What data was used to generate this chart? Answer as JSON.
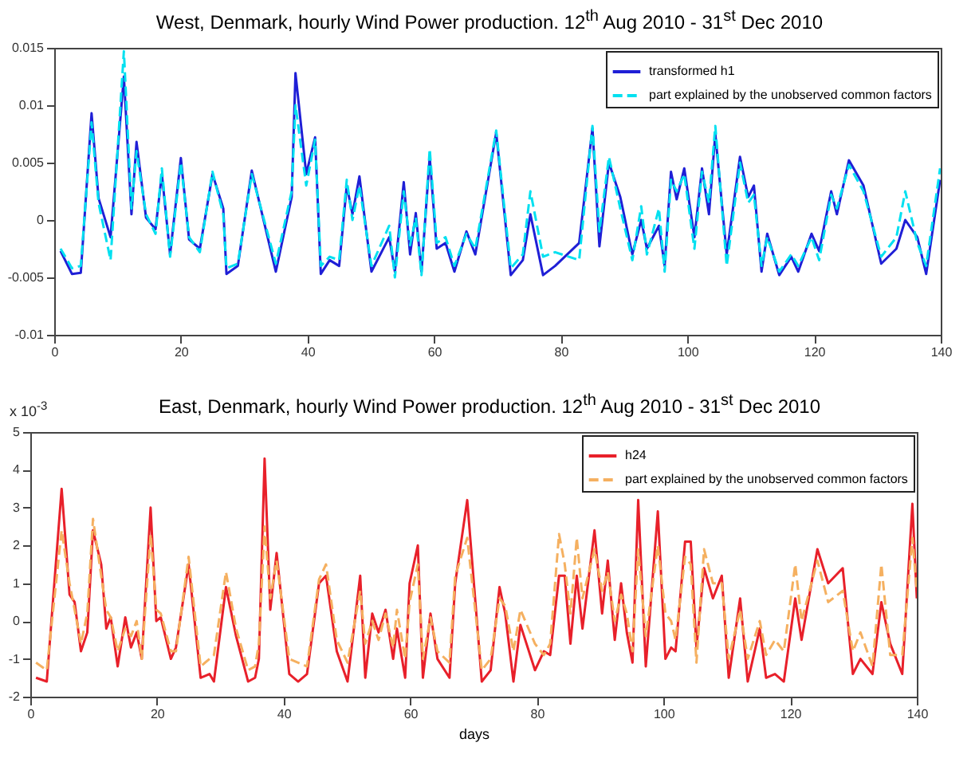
{
  "chart_data": [
    {
      "type": "line",
      "title": "West, Denmark, hourly Wind Power production. 12$^{th}$ Aug 2010 - 31$^{st}$ Dec 2010",
      "x": [
        1,
        2.8,
        4.2,
        5.9,
        7,
        8.9,
        11,
        12.2,
        13,
        14.5,
        16,
        17,
        18.3,
        20,
        21.3,
        23,
        25,
        26.7,
        27.2,
        29,
        31.2,
        35,
        37.5,
        38.1,
        39.8,
        41.2,
        42.1,
        43.5,
        45,
        46.2,
        47.1,
        48.2,
        50.1,
        52.9,
        53.8,
        55.2,
        56.2,
        57.1,
        58,
        59.3,
        60.4,
        61.8,
        63.2,
        65.1,
        66.5,
        69.8,
        72.1,
        74,
        75.2,
        77.2,
        79.1,
        82.9,
        85,
        86.1,
        87.6,
        89.4,
        91.3,
        92.7,
        93.6,
        95.5,
        96.4,
        97.4,
        98.3,
        99.5,
        101.1,
        102.3,
        103.4,
        104.4,
        106.2,
        108.3,
        109.6,
        110.5,
        111.7,
        112.6,
        114.5,
        116.4,
        117.5,
        119.6,
        120.8,
        122.7,
        123.6,
        125.5,
        127.8,
        130.6,
        133,
        134.4,
        136.3,
        137.7,
        139.9
      ],
      "series": [
        {
          "name": "transformed h1",
          "color": "#1f1fd6",
          "line_style": "solid",
          "values": [
            -0.0027,
            -0.0047,
            -0.0046,
            0.0093,
            0.0019,
            -0.0015,
            0.0125,
            0.0005,
            0.0068,
            0.0002,
            -0.0008,
            0.004,
            -0.003,
            0.0054,
            -0.0017,
            -0.0025,
            0.004,
            0.001,
            -0.0047,
            -0.004,
            0.0043,
            -0.0045,
            0.002,
            0.0128,
            0.004,
            0.0072,
            -0.0047,
            -0.0035,
            -0.004,
            0.003,
            0.0005,
            0.0038,
            -0.0045,
            -0.0015,
            -0.0045,
            0.0033,
            -0.003,
            0.0006,
            -0.0045,
            0.0055,
            -0.0025,
            -0.002,
            -0.0045,
            -0.001,
            -0.003,
            0.0076,
            -0.0048,
            -0.0035,
            0.0005,
            -0.0048,
            -0.004,
            -0.002,
            0.008,
            -0.0023,
            0.005,
            0.002,
            -0.003,
            0,
            -0.0025,
            -0.0005,
            -0.004,
            0.0042,
            0.0018,
            0.0045,
            -0.0015,
            0.0045,
            0.0005,
            0.0075,
            -0.003,
            0.0055,
            0.002,
            0.003,
            -0.0045,
            -0.0012,
            -0.0048,
            -0.0032,
            -0.0045,
            -0.0012,
            -0.0027,
            0.0025,
            0.0005,
            0.0052,
            0.003,
            -0.0038,
            -0.0025,
            0,
            -0.0015,
            -0.0047,
            0.0035
          ]
        },
        {
          "name": "part explained by the unobserved common factors",
          "color": "#00e0f0",
          "line_style": "dashed",
          "values": [
            -0.0025,
            -0.0042,
            -0.004,
            0.0085,
            0.0015,
            -0.0035,
            0.0147,
            0.001,
            0.006,
            0.0005,
            -0.0012,
            0.0045,
            -0.0032,
            0.005,
            -0.0015,
            -0.0028,
            0.0042,
            0.0005,
            -0.0042,
            -0.0038,
            0.004,
            -0.0038,
            0.0025,
            0.01,
            0.003,
            0.007,
            -0.004,
            -0.0032,
            -0.0035,
            0.0035,
            0,
            0.003,
            -0.004,
            -0.0005,
            -0.005,
            0.0025,
            -0.0022,
            0.0002,
            -0.0048,
            0.0062,
            -0.002,
            -0.0015,
            -0.004,
            -0.0012,
            -0.0025,
            0.0078,
            -0.0042,
            -0.003,
            0.0025,
            -0.0032,
            -0.0028,
            -0.0035,
            0.0082,
            -0.001,
            0.0055,
            0.001,
            -0.0035,
            0.0012,
            -0.003,
            0.001,
            -0.0045,
            0.0035,
            0.0025,
            0.004,
            -0.0025,
            0.0042,
            0.0015,
            0.0082,
            -0.004,
            0.005,
            0.0015,
            0.0022,
            -0.004,
            -0.0015,
            -0.0045,
            -0.003,
            -0.004,
            -0.0015,
            -0.0035,
            0.0022,
            0.001,
            0.0048,
            0.0025,
            -0.0032,
            -0.0015,
            0.0025,
            -0.002,
            -0.004,
            0.0045
          ]
        }
      ],
      "xlim": [
        0,
        140
      ],
      "xticks": [
        0,
        20,
        40,
        60,
        80,
        100,
        120,
        140
      ],
      "ylim": [
        -0.01,
        0.015
      ],
      "yticks": [
        -0.01,
        -0.005,
        0,
        0.005,
        0.01,
        0.015
      ],
      "grid": false,
      "legend": "top right"
    },
    {
      "type": "line",
      "title": "East, Denmark, hourly Wind Power production. 12$^{th}$ Aug 2010 - 31$^{st}$ Dec 2010",
      "xlabel": "days",
      "annotations": [
        "x 10$^{-3}$"
      ],
      "x": [
        0.9,
        2.6,
        4.95,
        6.2,
        7,
        8,
        9,
        9.9,
        11.2,
        12,
        12.7,
        13.8,
        15,
        15.9,
        16.8,
        17.6,
        19,
        19.9,
        20.6,
        22.2,
        23,
        25,
        26.9,
        28.3,
        29,
        30.9,
        32.5,
        34.4,
        35.5,
        36.1,
        37,
        37.9,
        38.9,
        40.9,
        42.3,
        43.7,
        45.6,
        46.7,
        48.4,
        50.1,
        52.1,
        52.9,
        54,
        55,
        56.1,
        57.3,
        57.9,
        59.2,
        59.9,
        61.2,
        62,
        63.2,
        64.3,
        66.2,
        67.1,
        69,
        71.3,
        72.7,
        74.1,
        75,
        76.3,
        77.4,
        79.7,
        81.1,
        82.1,
        83.5,
        84.4,
        85.3,
        86.3,
        87.2,
        89.1,
        90.3,
        91.2,
        92.3,
        93.3,
        94.2,
        95.1,
        96,
        97.2,
        99.1,
        100.3,
        101.2,
        101.9,
        103.4,
        104.3,
        105.2,
        106.4,
        107.8,
        109.2,
        110.3,
        112.1,
        113.3,
        115.2,
        116.2,
        117.6,
        119,
        120.8,
        121.8,
        124.3,
        126,
        128.3,
        129.9,
        131.1,
        133,
        134.4,
        135.8,
        137.7,
        139.3,
        140
      ],
      "series": [
        {
          "name": "h24",
          "color": "#e8202a",
          "line_style": "solid",
          "values": [
            -1.5,
            -1.6,
            3.5,
            0.7,
            0.5,
            -0.8,
            -0.3,
            2.4,
            1.5,
            -0.2,
            0.1,
            -1.2,
            0.1,
            -0.7,
            -0.3,
            -1,
            3,
            0,
            0.1,
            -1,
            -0.7,
            1.5,
            -1.5,
            -1.4,
            -1.6,
            0.9,
            -0.4,
            -1.6,
            -1.5,
            -1,
            4.3,
            0.3,
            1.8,
            -1.4,
            -1.6,
            -1.4,
            1,
            1.2,
            -0.8,
            -1.6,
            1.2,
            -1.5,
            0.2,
            -0.3,
            0.3,
            -1,
            -0.2,
            -1.5,
            1,
            2,
            -1.5,
            0.2,
            -1,
            -1.5,
            1,
            3.2,
            -1.6,
            -1.3,
            0.9,
            0.2,
            -1.6,
            -0.1,
            -1.3,
            -0.8,
            -0.9,
            1.2,
            1.2,
            -0.6,
            1.2,
            -0.2,
            2.4,
            0.2,
            1.6,
            -0.5,
            1,
            -0.3,
            -1.1,
            3.2,
            -1.2,
            2.9,
            -1,
            -0.7,
            -0.8,
            2.1,
            2.1,
            -0.7,
            1.4,
            0.6,
            1.2,
            -1.5,
            0.6,
            -1.6,
            -0.2,
            -1.5,
            -1.4,
            -1.6,
            0.6,
            -0.5,
            1.9,
            1,
            1.4,
            -1.4,
            -1,
            -1.4,
            0.5,
            -0.6,
            -1.4,
            3.1,
            0.6
          ]
        },
        {
          "name": "part explained by the unobserved common factors",
          "color": "#f5b060",
          "line_style": "dashed",
          "values": [
            -1.1,
            -1.3,
            2.4,
            1,
            0.3,
            -0.6,
            0.2,
            2.7,
            1.2,
            0.3,
            0.1,
            -0.8,
            -0.2,
            -0.4,
            0,
            -1,
            2.3,
            0.3,
            0.2,
            -0.8,
            -0.8,
            1.7,
            -1.2,
            -1,
            -0.9,
            1.3,
            -0.2,
            -1.3,
            -1.2,
            -0.6,
            2.5,
            0.6,
            1.6,
            -1,
            -1.1,
            -1.2,
            1.1,
            1.5,
            -0.5,
            -1.1,
            0.8,
            -0.6,
            0,
            -0.5,
            0.2,
            -0.7,
            0.3,
            -1,
            0.5,
            1.5,
            -1,
            0.1,
            -0.8,
            -1.1,
            1.2,
            2.2,
            -1.3,
            -1,
            0.6,
            0.4,
            -0.8,
            0.3,
            -0.6,
            -0.9,
            -0.6,
            2.3,
            1.5,
            0.2,
            2.2,
            0.6,
            1.9,
            0.8,
            1.3,
            0,
            0.7,
            0.2,
            -0.8,
            1.9,
            -0.4,
            2,
            0.2,
            0,
            -0.5,
            1.7,
            1.5,
            -1.1,
            1.9,
            1,
            1,
            -1,
            0.3,
            -1,
            0,
            -0.9,
            -0.5,
            -0.8,
            1.5,
            0,
            1.6,
            0.5,
            0.8,
            -0.8,
            -0.3,
            -1.2,
            1.5,
            -0.9,
            -0.9,
            2.2,
            0.8
          ]
        }
      ],
      "xlim": [
        0,
        140
      ],
      "xticks": [
        0,
        20,
        40,
        60,
        80,
        100,
        120,
        140
      ],
      "ylim": [
        -2,
        5
      ],
      "yticks": [
        -2,
        -1,
        0,
        1,
        2,
        3,
        4,
        5
      ],
      "grid": false,
      "legend": "top right"
    }
  ]
}
